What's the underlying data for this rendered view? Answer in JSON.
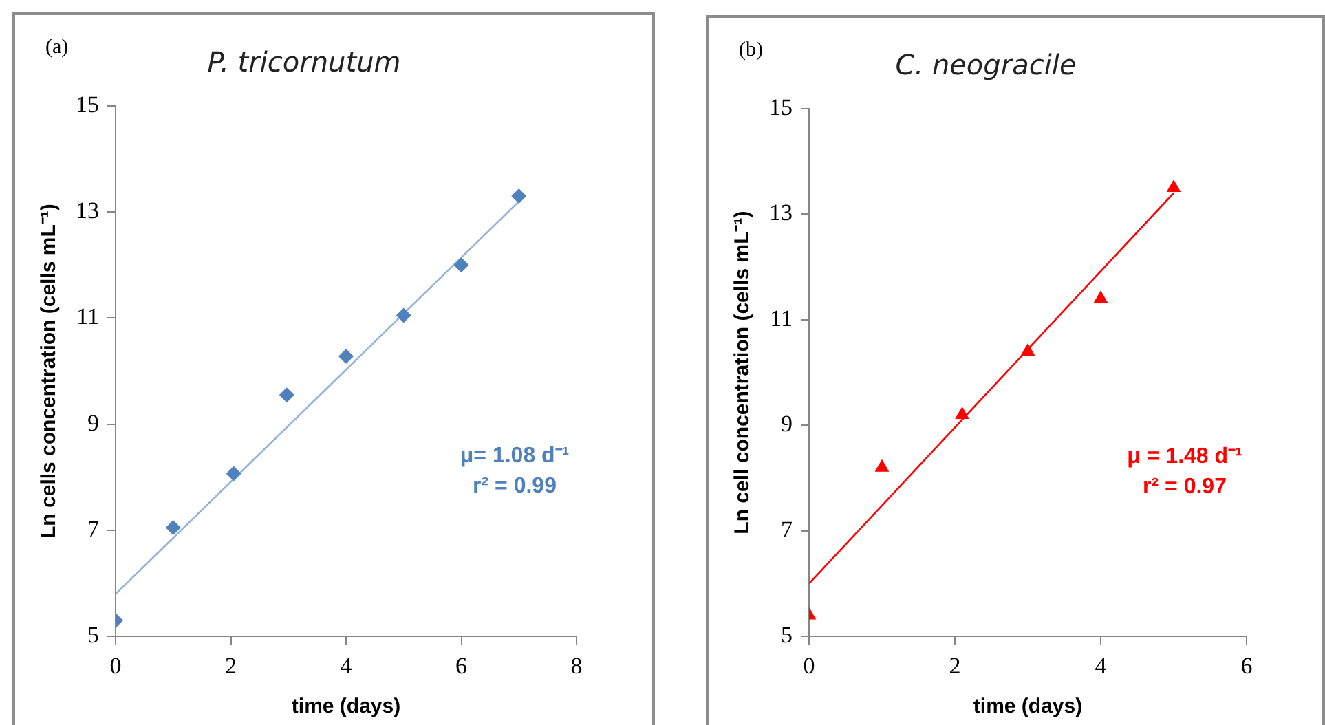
{
  "chart_data": [
    {
      "type": "scatter",
      "title": "P. tricornutum",
      "xlabel": "time (days)",
      "ylabel": "Ln cells concentration (cells mL⁻¹)",
      "xlim": [
        0,
        8
      ],
      "xticks": [
        0,
        2,
        4,
        6,
        8
      ],
      "ylim": [
        5,
        15
      ],
      "yticks": [
        5,
        7,
        9,
        11,
        13,
        15
      ],
      "grid": false,
      "legend": false,
      "annotations": [
        "(a)",
        "μ= 1.08 d⁻¹",
        "r² = 0.99"
      ],
      "series": [
        {
          "type": "scatter",
          "color": "#4f81bd",
          "marker": "diamond",
          "x": [
            0,
            1,
            2.05,
            2.97,
            4,
            5,
            6,
            7
          ],
          "values": [
            5.3,
            7.05,
            8.07,
            9.55,
            10.28,
            11.05,
            12.0,
            13.3
          ]
        },
        {
          "type": "line",
          "color": "#95b3d7",
          "marker": "none",
          "line_style": "solid",
          "x": [
            0,
            7
          ],
          "values": [
            5.8,
            13.2
          ]
        }
      ]
    },
    {
      "type": "scatter",
      "title": "C. neogracile",
      "xlabel": "time (days)",
      "ylabel": "Ln cell concentration (cells mL⁻¹)",
      "xlim": [
        0,
        6
      ],
      "xticks": [
        0,
        2,
        4,
        6
      ],
      "ylim": [
        5,
        15
      ],
      "yticks": [
        5,
        7,
        9,
        11,
        13,
        15
      ],
      "grid": false,
      "legend": false,
      "annotations": [
        "(b)",
        "μ = 1.48 d⁻¹",
        "r² = 0.97"
      ],
      "series": [
        {
          "type": "scatter",
          "color": "#ff0000",
          "marker": "triangle",
          "x": [
            0,
            1,
            2.1,
            3,
            4,
            5
          ],
          "values": [
            5.4,
            8.2,
            9.2,
            10.4,
            11.4,
            13.5
          ]
        },
        {
          "type": "line",
          "color": "#ff0000",
          "marker": "none",
          "line_style": "solid",
          "x": [
            0,
            5
          ],
          "values": [
            6.0,
            13.4
          ]
        }
      ]
    }
  ]
}
